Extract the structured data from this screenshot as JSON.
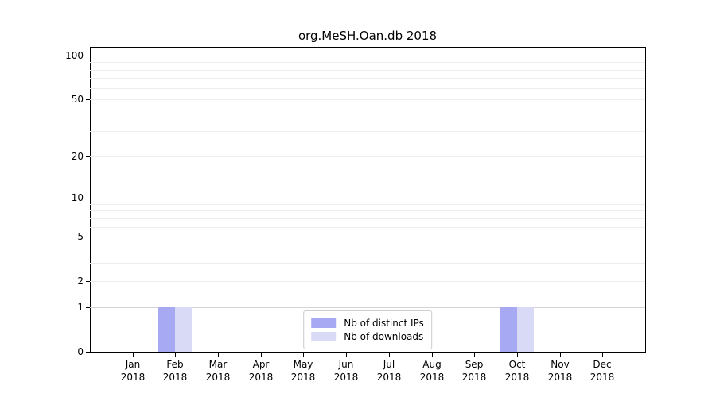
{
  "chart_data": {
    "type": "bar",
    "title": "org.MeSH.Oan.db 2018",
    "categories": [
      {
        "month": "Jan",
        "year": "2018"
      },
      {
        "month": "Feb",
        "year": "2018"
      },
      {
        "month": "Mar",
        "year": "2018"
      },
      {
        "month": "Apr",
        "year": "2018"
      },
      {
        "month": "May",
        "year": "2018"
      },
      {
        "month": "Jun",
        "year": "2018"
      },
      {
        "month": "Jul",
        "year": "2018"
      },
      {
        "month": "Aug",
        "year": "2018"
      },
      {
        "month": "Sep",
        "year": "2018"
      },
      {
        "month": "Oct",
        "year": "2018"
      },
      {
        "month": "Nov",
        "year": "2018"
      },
      {
        "month": "Dec",
        "year": "2018"
      }
    ],
    "series": [
      {
        "name": "Nb of distinct IPs",
        "color": "#a7aaf2",
        "values": [
          0,
          1,
          0,
          0,
          0,
          0,
          0,
          0,
          0,
          1,
          0,
          0
        ]
      },
      {
        "name": "Nb of downloads",
        "color": "#d9daf6",
        "values": [
          0,
          1,
          0,
          0,
          0,
          0,
          0,
          0,
          0,
          1,
          0,
          0
        ]
      }
    ],
    "y_axis": {
      "scale": "log1p",
      "range": [
        0,
        113
      ],
      "ticks": [
        0,
        1,
        2,
        5,
        10,
        20,
        50,
        100
      ],
      "major_gridlines": [
        1,
        10,
        100
      ],
      "minor_gridlines": [
        2,
        3,
        4,
        5,
        6,
        7,
        8,
        9,
        20,
        30,
        40,
        50,
        60,
        70,
        80,
        90
      ]
    },
    "legend": {
      "position": "bottom-center"
    },
    "colors": {
      "background": "#ffffff",
      "axis": "#000000",
      "text": "#000000",
      "major_grid": "#d4d4d4",
      "minor_grid": "#ededed"
    }
  }
}
